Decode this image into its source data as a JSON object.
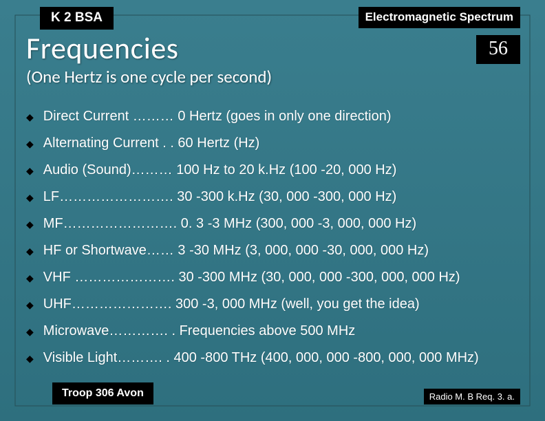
{
  "background": {
    "top_color": "#3a7e8e",
    "bottom_color": "#2e6f7e",
    "inner_border": "#254f56"
  },
  "header": {
    "left_badge": "K 2 BSA",
    "right_badge": "Electromagnetic Spectrum"
  },
  "title": "Frequencies",
  "page_number": "56",
  "subtitle": "(One Hertz is one cycle per second)",
  "items": [
    "Direct Current ……… 0 Hertz (goes in only one direction)",
    "Alternating Current  . . 60 Hertz (Hz)",
    "Audio (Sound)……… 100 Hz to 20 k.Hz (100 -20, 000 Hz)",
    "LF……………………. 30 -300 k.Hz (30, 000 -300, 000 Hz)",
    "MF……………………. 0. 3 -3 MHz (300, 000 -3, 000, 000 Hz)",
    "HF or Shortwave…… 3 -30 MHz (3, 000, 000 -30, 000, 000 Hz)",
    "VHF …………………. 30 -300 MHz (30, 000, 000 -300, 000, 000 Hz)",
    "UHF…………………. 300 -3, 000 MHz (well, you get the idea)",
    "Microwave…………. . Frequencies above 500 MHz",
    "Visible Light………. . 400 -800 THz (400, 000, 000 -800, 000, 000 MHz)"
  ],
  "footer": {
    "left": "Troop 306 Avon",
    "right": "Radio M. B Req. 3. a."
  }
}
